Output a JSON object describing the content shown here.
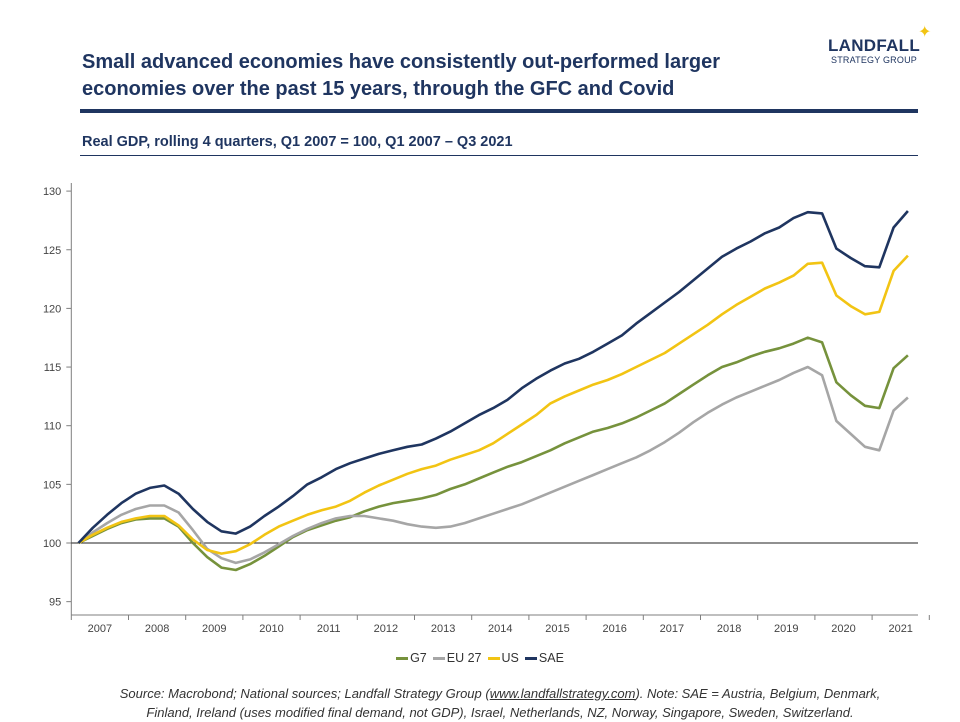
{
  "header": {
    "title_line1": "Small advanced economies have consistently out-performed larger",
    "title_line2": "economies over the past 15 years, through the GFC and Covid",
    "logo_line1": "LANDFALL",
    "logo_line2": "STRATEGY GROUP",
    "subtitle": "Real GDP, rolling 4 quarters, Q1 2007 = 100, Q1 2007 – Q3 2021"
  },
  "chart_data": {
    "type": "line",
    "title": "Real GDP, rolling 4 quarters, Q1 2007 = 100, Q1 2007 – Q3 2021",
    "xlabel": "",
    "ylabel": "",
    "x_start": "Q1 2007",
    "x_end": "Q3 2021",
    "x_frequency": "quarterly",
    "x_tick_labels": [
      "2007",
      "2008",
      "2009",
      "2010",
      "2011",
      "2012",
      "2013",
      "2014",
      "2015",
      "2016",
      "2017",
      "2018",
      "2019",
      "2020",
      "2021"
    ],
    "ylim": [
      94,
      131
    ],
    "y_ticks": [
      95,
      100,
      105,
      110,
      115,
      120,
      125,
      130
    ],
    "reference_line": 100,
    "grid": false,
    "legend_position": "bottom",
    "series": [
      {
        "name": "G7",
        "color": "#76923c",
        "values": [
          100,
          100.6,
          101.2,
          101.7,
          102.0,
          102.1,
          102.1,
          101.4,
          100.0,
          98.8,
          97.9,
          97.7,
          98.2,
          98.9,
          99.7,
          100.5,
          101.1,
          101.5,
          101.9,
          102.2,
          102.7,
          103.1,
          103.4,
          103.6,
          103.8,
          104.1,
          104.6,
          105.0,
          105.5,
          106.0,
          106.5,
          106.9,
          107.4,
          107.9,
          108.5,
          109.0,
          109.5,
          109.8,
          110.2,
          110.7,
          111.3,
          111.9,
          112.7,
          113.5,
          114.3,
          115.0,
          115.4,
          115.9,
          116.3,
          116.6,
          117.0,
          117.5,
          117.1,
          113.7,
          112.6,
          111.7,
          111.5,
          114.9,
          116.0
        ]
      },
      {
        "name": "EU 27",
        "color": "#a6a6a6",
        "values": [
          100,
          100.9,
          101.7,
          102.4,
          102.9,
          103.2,
          103.2,
          102.6,
          101.1,
          99.5,
          98.7,
          98.3,
          98.6,
          99.2,
          99.9,
          100.6,
          101.2,
          101.7,
          102.1,
          102.3,
          102.3,
          102.1,
          101.9,
          101.6,
          101.4,
          101.3,
          101.4,
          101.7,
          102.1,
          102.5,
          102.9,
          103.3,
          103.8,
          104.3,
          104.8,
          105.3,
          105.8,
          106.3,
          106.8,
          107.3,
          107.9,
          108.6,
          109.4,
          110.3,
          111.1,
          111.8,
          112.4,
          112.9,
          113.4,
          113.9,
          114.5,
          115.0,
          114.3,
          110.4,
          109.3,
          108.2,
          107.9,
          111.3,
          112.4
        ]
      },
      {
        "name": "US",
        "color": "#f2c413",
        "values": [
          100,
          100.7,
          101.3,
          101.8,
          102.1,
          102.3,
          102.3,
          101.5,
          100.3,
          99.4,
          99.1,
          99.3,
          99.9,
          100.7,
          101.4,
          101.9,
          102.4,
          102.8,
          103.1,
          103.6,
          104.3,
          104.9,
          105.4,
          105.9,
          106.3,
          106.6,
          107.1,
          107.5,
          107.9,
          108.5,
          109.3,
          110.1,
          110.9,
          111.9,
          112.5,
          113.0,
          113.5,
          113.9,
          114.4,
          115.0,
          115.6,
          116.2,
          117.0,
          117.8,
          118.6,
          119.5,
          120.3,
          121.0,
          121.7,
          122.2,
          122.8,
          123.8,
          123.9,
          121.1,
          120.2,
          119.5,
          119.7,
          123.2,
          124.5
        ]
      },
      {
        "name": "SAE",
        "color": "#1f3560",
        "values": [
          100,
          101.3,
          102.4,
          103.4,
          104.2,
          104.7,
          104.9,
          104.2,
          102.9,
          101.8,
          101.0,
          100.8,
          101.4,
          102.3,
          103.1,
          104.0,
          105.0,
          105.6,
          106.3,
          106.8,
          107.2,
          107.6,
          107.9,
          108.2,
          108.4,
          108.9,
          109.5,
          110.2,
          110.9,
          111.5,
          112.2,
          113.2,
          114.0,
          114.7,
          115.3,
          115.7,
          116.3,
          117.0,
          117.7,
          118.7,
          119.6,
          120.5,
          121.4,
          122.4,
          123.4,
          124.4,
          125.1,
          125.7,
          126.4,
          126.9,
          127.7,
          128.2,
          128.1,
          125.1,
          124.3,
          123.6,
          123.5,
          126.9,
          128.3
        ]
      }
    ]
  },
  "legend": [
    "G7",
    "EU 27",
    "US",
    "SAE"
  ],
  "footer": {
    "source_prefix": "Source: Macrobond; National sources; Landfall Strategy Group (",
    "source_link": "www.landfallstrategy.com",
    "source_suffix": "). Note: SAE = Austria, Belgium, Denmark,",
    "source_line2": "Finland, Ireland (uses modified final demand, not GDP), Israel, Netherlands, NZ, Norway,  Singapore, Sweden, Switzerland."
  }
}
